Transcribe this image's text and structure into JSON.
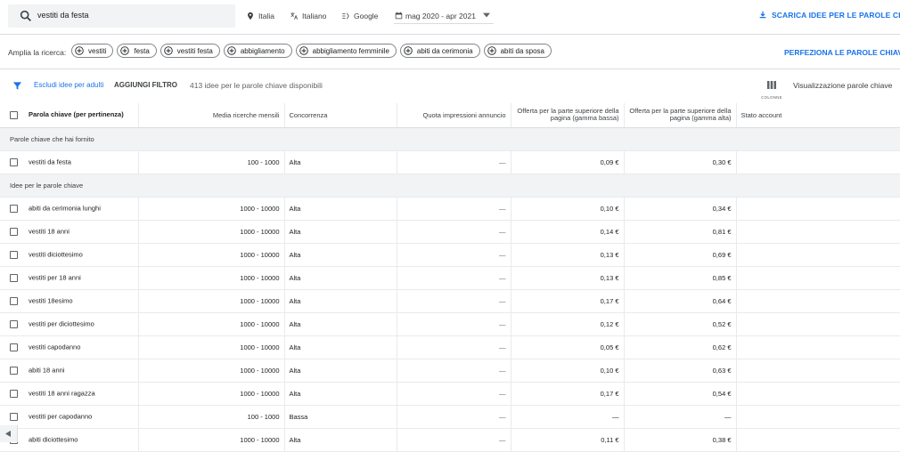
{
  "search": {
    "query": "vestiti da festa"
  },
  "filters": {
    "location": "Italia",
    "language": "Italiano",
    "network": "Google",
    "date_range": "mag 2020 - apr 2021"
  },
  "actions": {
    "download": "SCARICA IDEE PER LE PAROLE CHIA",
    "refine": "PERFEZIONA LE PAROLE CHIAVE"
  },
  "broaden": {
    "label": "Amplia la ricerca:",
    "chips": [
      "vestiti",
      "festa",
      "vestiti festa",
      "abbigliamento",
      "abbigliamento femminile",
      "abiti da cerimonia",
      "abiti da sposa"
    ]
  },
  "filterbar": {
    "exclude_adult": "Escludi idee per adulti",
    "add_filter": "AGGIUNGI FILTRO",
    "count_text": "413 idee per le parole chiave disponibili",
    "columns_label": "COLONNE",
    "view_label": "Visualizzazione parole chiave"
  },
  "table": {
    "headers": {
      "keyword": "Parola chiave (per pertinenza)",
      "searches": "Media ricerche mensili",
      "competition": "Concorrenza",
      "impression_share": "Quota impressioni annuncio",
      "bid_low": "Offerta per la parte superiore della pagina (gamma bassa)",
      "bid_high": "Offerta per la parte superiore della pagina (gamma alta)",
      "account_status": "Stato account"
    },
    "group_provided": "Parole chiave che hai fornito",
    "provided_rows": [
      {
        "keyword": "vestiti da festa",
        "searches": "100 - 1000",
        "competition": "Alta",
        "share": "—",
        "low": "0,09 €",
        "high": "0,30 €"
      }
    ],
    "group_ideas": "Idee per le parole chiave",
    "idea_rows": [
      {
        "keyword": "abiti da cerimonia lunghi",
        "searches": "1000 - 10000",
        "competition": "Alta",
        "share": "—",
        "low": "0,10 €",
        "high": "0,34 €"
      },
      {
        "keyword": "vestiti 18 anni",
        "searches": "1000 - 10000",
        "competition": "Alta",
        "share": "—",
        "low": "0,14 €",
        "high": "0,81 €"
      },
      {
        "keyword": "vestiti diciottesimo",
        "searches": "1000 - 10000",
        "competition": "Alta",
        "share": "—",
        "low": "0,13 €",
        "high": "0,69 €"
      },
      {
        "keyword": "vestiti per 18 anni",
        "searches": "1000 - 10000",
        "competition": "Alta",
        "share": "—",
        "low": "0,13 €",
        "high": "0,85 €"
      },
      {
        "keyword": "vestiti 18esimo",
        "searches": "1000 - 10000",
        "competition": "Alta",
        "share": "—",
        "low": "0,17 €",
        "high": "0,64 €"
      },
      {
        "keyword": "vestiti per diciottesimo",
        "searches": "1000 - 10000",
        "competition": "Alta",
        "share": "—",
        "low": "0,12 €",
        "high": "0,52 €"
      },
      {
        "keyword": "vestiti capodanno",
        "searches": "1000 - 10000",
        "competition": "Alta",
        "share": "—",
        "low": "0,05 €",
        "high": "0,62 €"
      },
      {
        "keyword": "abiti 18 anni",
        "searches": "1000 - 10000",
        "competition": "Alta",
        "share": "—",
        "low": "0,10 €",
        "high": "0,63 €"
      },
      {
        "keyword": "vestiti 18 anni ragazza",
        "searches": "1000 - 10000",
        "competition": "Alta",
        "share": "—",
        "low": "0,17 €",
        "high": "0,54 €"
      },
      {
        "keyword": "vestiti per capodanno",
        "searches": "100 - 1000",
        "competition": "Bassa",
        "share": "—",
        "low": "—",
        "high": "—"
      },
      {
        "keyword": "abiti diciottesimo",
        "searches": "1000 - 10000",
        "competition": "Alta",
        "share": "—",
        "low": "0,11 €",
        "high": "0,38 €"
      }
    ]
  },
  "colors": {
    "accent": "#1a73e8",
    "group_bg": "#f1f3f4"
  }
}
